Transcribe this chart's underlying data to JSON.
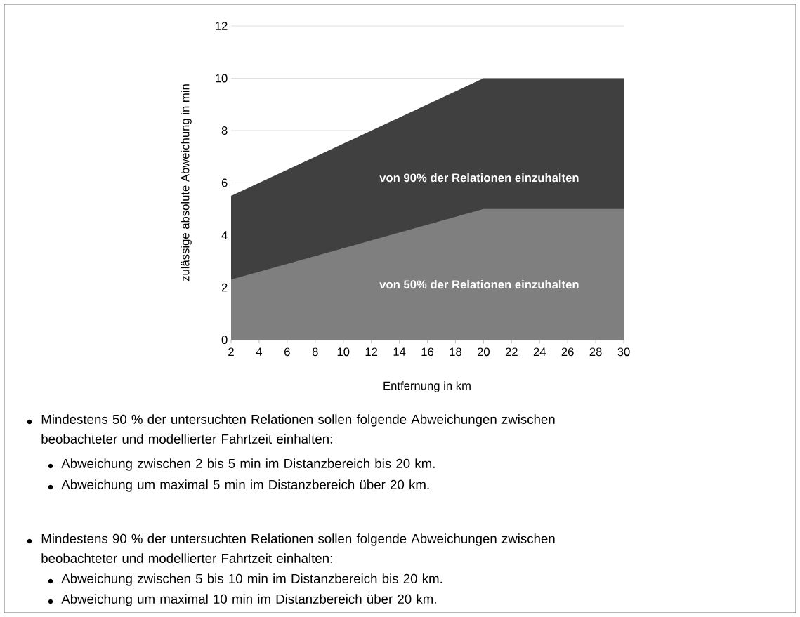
{
  "chart_data": {
    "type": "area",
    "xlabel": "Entfernung in km",
    "ylabel": "zulässige absolute Abweichung in min",
    "x": [
      2,
      20,
      30
    ],
    "series": [
      {
        "name": "von 90% der Relationen einzuhalten",
        "color": "#404040",
        "values": [
          5.5,
          10,
          10
        ]
      },
      {
        "name": "von 50% der Relationen einzuhalten",
        "color": "#7f7f7f",
        "values": [
          2.3,
          5,
          5
        ]
      }
    ],
    "xlim": [
      2,
      30
    ],
    "xticks": [
      2,
      4,
      6,
      8,
      10,
      12,
      14,
      16,
      18,
      20,
      22,
      24,
      26,
      28,
      30
    ],
    "ylim": [
      0,
      12
    ],
    "yticks": [
      0,
      2,
      4,
      6,
      8,
      10,
      12
    ],
    "grid": "y",
    "annotations": [
      "Mindestens 50 % der untersuchten Relationen sollen folgende Abweichungen zwischen beobachteter und modellierter Fahrtzeit einhalten:",
      "Abweichung zwischen 2 bis 5 min im Distanzbereich bis 20 km.",
      "Abweichung um maximal 5 min im Distanzbereich über 20 km.",
      "Mindestens 90 % der untersuchten Relationen sollen folgende Abweichungen zwischen beobachteter und modellierter Fahrtzeit einhalten:",
      "Abweichung zwischen 5 bis 10 min im Distanzbereich bis 20 km.",
      "Abweichung um maximal 10 min im Distanzbereich über 20 km."
    ]
  }
}
